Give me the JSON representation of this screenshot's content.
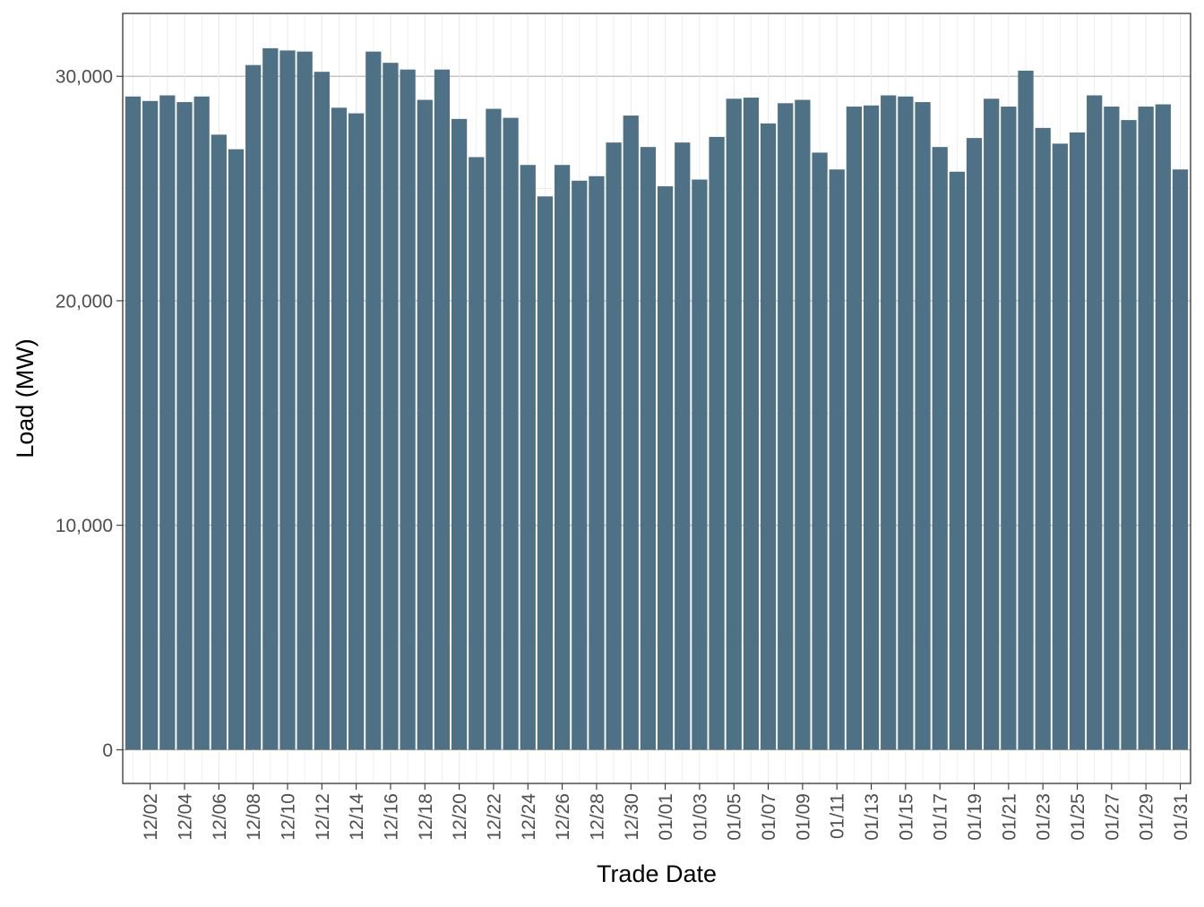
{
  "chart_data": {
    "type": "bar",
    "xlabel": "Trade Date",
    "ylabel": "Load (MW)",
    "ylim": [
      -1500,
      32800
    ],
    "y_ticks": [
      0,
      10000,
      20000,
      30000
    ],
    "y_tick_labels": [
      "0",
      "10,000",
      "20,000",
      "30,000"
    ],
    "grid": true,
    "bar_color": "#4e7185",
    "categories": [
      "12/01",
      "12/02",
      "12/03",
      "12/04",
      "12/05",
      "12/06",
      "12/07",
      "12/08",
      "12/09",
      "12/10",
      "12/11",
      "12/12",
      "12/13",
      "12/14",
      "12/15",
      "12/16",
      "12/17",
      "12/18",
      "12/19",
      "12/20",
      "12/21",
      "12/22",
      "12/23",
      "12/24",
      "12/25",
      "12/26",
      "12/27",
      "12/28",
      "12/29",
      "12/30",
      "12/31",
      "01/01",
      "01/02",
      "01/03",
      "01/04",
      "01/05",
      "01/06",
      "01/07",
      "01/08",
      "01/09",
      "01/10",
      "01/11",
      "01/12",
      "01/13",
      "01/14",
      "01/15",
      "01/16",
      "01/17",
      "01/18",
      "01/19",
      "01/20",
      "01/21",
      "01/22",
      "01/23",
      "01/24",
      "01/25",
      "01/26",
      "01/27",
      "01/28",
      "01/29",
      "01/30",
      "01/31"
    ],
    "x_tick_labels": [
      "12/02",
      "12/04",
      "12/06",
      "12/08",
      "12/10",
      "12/12",
      "12/14",
      "12/16",
      "12/18",
      "12/20",
      "12/22",
      "12/24",
      "12/26",
      "12/28",
      "12/30",
      "01/01",
      "01/03",
      "01/05",
      "01/07",
      "01/09",
      "01/11",
      "01/13",
      "01/15",
      "01/17",
      "01/19",
      "01/21",
      "01/23",
      "01/25",
      "01/27",
      "01/29",
      "01/31"
    ],
    "values": [
      29100,
      28900,
      29150,
      28850,
      29100,
      27400,
      26750,
      30500,
      31250,
      31150,
      31100,
      30200,
      28600,
      28350,
      31100,
      30600,
      30300,
      28950,
      30300,
      28100,
      26400,
      28550,
      28150,
      26050,
      24650,
      26050,
      25350,
      25550,
      27050,
      28250,
      26850,
      25100,
      27050,
      25400,
      27300,
      29000,
      29050,
      27900,
      28800,
      28950,
      26600,
      25850,
      28650,
      28700,
      29150,
      29100,
      28850,
      26850,
      25750,
      27250,
      29000,
      28650,
      30250,
      27700,
      27000,
      27500,
      29150,
      28650,
      28050,
      28650,
      28750,
      25850
    ]
  }
}
